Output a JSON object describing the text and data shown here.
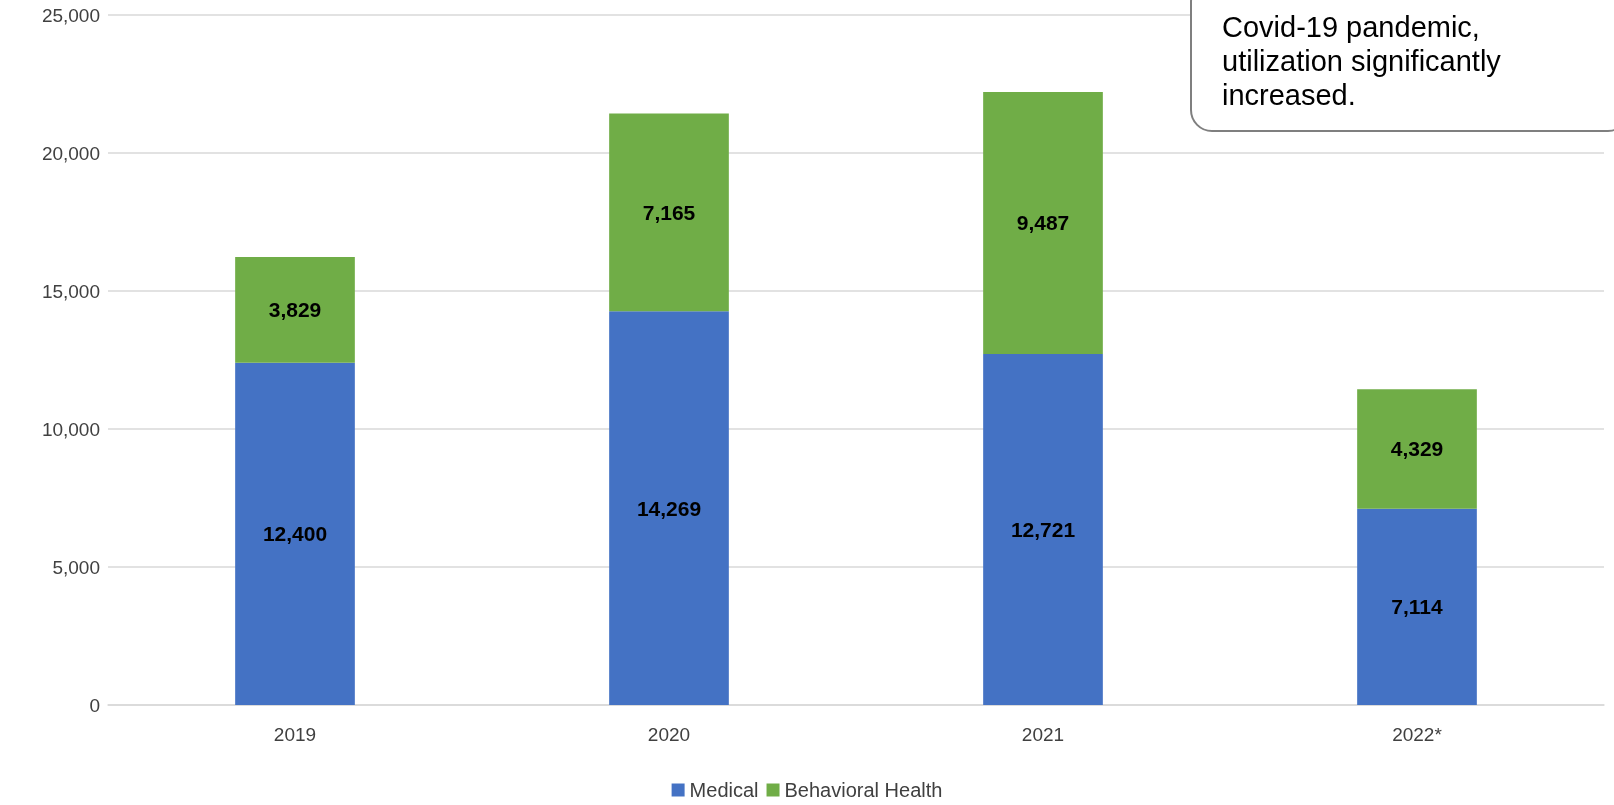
{
  "chart_data": {
    "type": "bar",
    "stacked": true,
    "categories": [
      "2019",
      "2020",
      "2021",
      "2022*"
    ],
    "series": [
      {
        "name": "Medical",
        "color": "#4472c4",
        "values": [
          12400,
          14269,
          12721,
          7114
        ],
        "value_labels": [
          "12,400",
          "14,269",
          "12,721",
          "7,114"
        ]
      },
      {
        "name": "Behavioral Health",
        "color": "#70ad47",
        "values": [
          3829,
          7165,
          9487,
          4329
        ],
        "value_labels": [
          "3,829",
          "7,165",
          "9,487",
          "4,329"
        ]
      }
    ],
    "ylim": [
      0,
      25000
    ],
    "yticks": [
      0,
      {
        "value": 5000,
        "label": "5,000"
      },
      {
        "value": 10000,
        "label": "10,000"
      },
      {
        "value": 15000,
        "label": "15,000"
      },
      {
        "value": 20000,
        "label": "20,000"
      },
      {
        "value": 25000,
        "label": "25,000"
      }
    ],
    "grid": "y",
    "legend": "bottom",
    "annotations": [
      "Covid-19 pandemic, utilization significantly increased."
    ]
  }
}
